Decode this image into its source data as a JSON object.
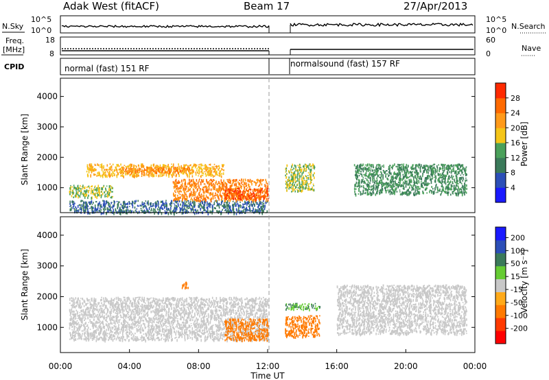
{
  "header": {
    "station": "Adak West (fitACF)",
    "beam": "Beam 17",
    "date": "27/Apr/2013"
  },
  "panels": {
    "nsky": {
      "label": "N.Sky",
      "ticks": [
        "10^5",
        "10^0"
      ],
      "right_label": "N.Search"
    },
    "freq": {
      "label_line1": "Freq.",
      "label_line2": "[MHz]",
      "ticks": [
        "18",
        "8"
      ],
      "right_ticks": [
        "60",
        "0"
      ],
      "right_label": "Nave"
    },
    "cpid": {
      "label": "CPID",
      "segments": [
        "normal (fast) 151 RF",
        "normalsound (fast) 157 RF"
      ]
    }
  },
  "axes": {
    "ylabel": "Slant Range [km]",
    "y_ticks": [
      "1000",
      "2000",
      "3000",
      "4000"
    ],
    "xlabel": "Time UT",
    "x_ticks": [
      "00:00",
      "04:00",
      "08:00",
      "12:00",
      "16:00",
      "20:00",
      "00:00"
    ]
  },
  "colorbars": {
    "power": {
      "label": "Power [dB]",
      "ticks": [
        "4",
        "8",
        "12",
        "16",
        "20",
        "24",
        "28"
      ],
      "colors": [
        "#1a1aff",
        "#2c4fb8",
        "#3b7a5a",
        "#4aa05a",
        "#f5c518",
        "#ff9a1a",
        "#ff6a00",
        "#ff2a00"
      ]
    },
    "velocity": {
      "label": "Velocity [m s⁻¹]",
      "ticks": [
        "200",
        "100",
        "50",
        "15",
        "-15",
        "-50",
        "-100",
        "-200"
      ],
      "colors": [
        "#1a1aff",
        "#2c4fb8",
        "#3b7a5a",
        "#66cc33",
        "#c8c8c8",
        "#ffaa1a",
        "#ff7a00",
        "#ff3a00",
        "#ff0000"
      ]
    }
  },
  "chart_data": [
    {
      "type": "heatmap",
      "title": "Power",
      "xlabel": "Time UT",
      "ylabel": "Slant Range [km]",
      "xlim": [
        "00:00",
        "24:00"
      ],
      "ylim": [
        180,
        4600
      ],
      "colorbar_label": "Power [dB]",
      "regions": [
        {
          "x": [
            0.5,
            12.0
          ],
          "y": [
            180,
            600
          ],
          "value": 8
        },
        {
          "x": [
            0.5,
            3.0
          ],
          "y": [
            700,
            1100
          ],
          "value": 16
        },
        {
          "x": [
            1.5,
            9.5
          ],
          "y": [
            1400,
            1800
          ],
          "value": 20
        },
        {
          "x": [
            3.5,
            7.5
          ],
          "y": [
            1500,
            1700
          ],
          "value": 24
        },
        {
          "x": [
            6.5,
            12.0
          ],
          "y": [
            600,
            1300
          ],
          "value": 24
        },
        {
          "x": [
            9.5,
            12.0
          ],
          "y": [
            650,
            1000
          ],
          "value": 28
        },
        {
          "x": [
            13.0,
            14.7
          ],
          "y": [
            900,
            1800
          ],
          "value": 16
        },
        {
          "x": [
            17.0,
            23.5
          ],
          "y": [
            800,
            1800
          ],
          "value": 12
        }
      ]
    },
    {
      "type": "heatmap",
      "title": "Velocity",
      "xlabel": "Time UT",
      "ylabel": "Slant Range [km]",
      "xlim": [
        "00:00",
        "24:00"
      ],
      "ylim": [
        180,
        4600
      ],
      "colorbar_label": "Velocity [m s⁻¹]",
      "regions": [
        {
          "x": [
            0.5,
            12.0
          ],
          "y": [
            600,
            2000
          ],
          "value": 0
        },
        {
          "x": [
            9.5,
            12.0
          ],
          "y": [
            600,
            1300
          ],
          "value": -60
        },
        {
          "x": [
            7.0,
            7.4
          ],
          "y": [
            2300,
            2500
          ],
          "value": -50
        },
        {
          "x": [
            13.0,
            15.0
          ],
          "y": [
            700,
            1400
          ],
          "value": -60
        },
        {
          "x": [
            13.0,
            15.0
          ],
          "y": [
            1600,
            1800
          ],
          "value": 30
        },
        {
          "x": [
            16.0,
            23.5
          ],
          "y": [
            800,
            2400
          ],
          "value": 0
        }
      ]
    }
  ]
}
